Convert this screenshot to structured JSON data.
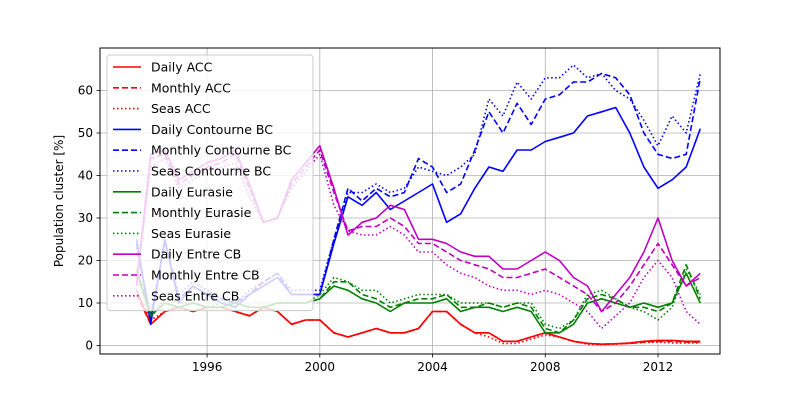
{
  "chart_data": {
    "type": "line",
    "title": "",
    "xlabel": "",
    "ylabel": "Population cluster [%]",
    "xlim": [
      1992.2,
      2014.2
    ],
    "ylim": [
      -2,
      70
    ],
    "x_ticks": [
      1996,
      2000,
      2004,
      2008,
      2012
    ],
    "x_tick_labels": [
      "1996",
      "2000",
      "2004",
      "2008",
      "2012"
    ],
    "y_ticks": [
      0,
      10,
      20,
      30,
      40,
      50,
      60
    ],
    "y_tick_labels": [
      "0",
      "10",
      "20",
      "30",
      "40",
      "50",
      "60"
    ],
    "grid": true,
    "legend_position": "upper-left",
    "colors": {
      "ACC": "#ff0000",
      "Contourne BC": "#0000ff",
      "Eurasie": "#008000",
      "Entre CB": "#bf00bf"
    },
    "x": [
      1993.5,
      1994.0,
      1994.5,
      1995.0,
      1995.5,
      1996.0,
      1996.5,
      1997.0,
      1997.5,
      1998.0,
      1998.5,
      1999.0,
      1999.5,
      2000.0,
      2000.5,
      2001.0,
      2001.5,
      2002.0,
      2002.5,
      2003.0,
      2003.5,
      2004.0,
      2004.5,
      2005.0,
      2005.5,
      2006.0,
      2006.5,
      2007.0,
      2007.5,
      2008.0,
      2008.5,
      2009.0,
      2009.5,
      2010.0,
      2010.5,
      2011.0,
      2011.5,
      2012.0,
      2012.5,
      2013.0,
      2013.5
    ],
    "series": [
      {
        "name": "Daily ACC",
        "group": "ACC",
        "style": "solid",
        "values": [
          13,
          5,
          8,
          9,
          8,
          9,
          9,
          8,
          7,
          9,
          8,
          5,
          6,
          6,
          3,
          2,
          3,
          4,
          3,
          3,
          4,
          8,
          8,
          5,
          3,
          3,
          1,
          1,
          2,
          3,
          2,
          1,
          0.5,
          0.3,
          0.4,
          0.6,
          1.0,
          1.2,
          1.2,
          1.0,
          1.0
        ]
      },
      {
        "name": "Monthly ACC",
        "group": "ACC",
        "style": "dashed",
        "values": [
          12,
          5,
          8,
          9,
          8,
          9,
          9,
          8,
          7,
          9,
          8,
          5,
          6,
          6,
          3,
          2,
          3,
          4,
          3,
          3,
          4,
          8,
          8,
          5,
          3,
          3,
          1,
          1,
          2,
          3,
          2,
          1,
          0.5,
          0.3,
          0.4,
          0.5,
          0.8,
          1.0,
          1.0,
          0.8,
          0.8
        ]
      },
      {
        "name": "Seas ACC",
        "group": "ACC",
        "style": "dotted",
        "values": [
          13,
          6,
          8,
          9,
          8,
          9,
          9,
          8,
          7,
          9,
          8,
          5,
          6,
          6,
          3,
          2,
          3,
          4,
          3,
          3,
          4,
          8,
          8,
          5,
          3,
          2,
          0.5,
          0.5,
          1.5,
          2.5,
          2,
          1,
          0.3,
          0.2,
          0.3,
          0.5,
          0.7,
          0.8,
          0.6,
          0.6,
          0.6
        ]
      },
      {
        "name": "Daily Contourne BC",
        "group": "Contourne BC",
        "style": "solid",
        "values": [
          25,
          5,
          25,
          10,
          14,
          12,
          10,
          9,
          12,
          14,
          16,
          12,
          12,
          12,
          24,
          35,
          33,
          36,
          32,
          34,
          36,
          38,
          29,
          31,
          37,
          42,
          41,
          46,
          46,
          48,
          49,
          50,
          54,
          55,
          56,
          50,
          42,
          37,
          39,
          42,
          51
        ]
      },
      {
        "name": "Monthly Contourne BC",
        "group": "Contourne BC",
        "style": "dashed",
        "values": [
          24,
          6,
          25,
          11,
          14,
          12,
          11,
          10,
          12,
          15,
          17,
          12,
          12,
          12,
          25,
          37,
          34,
          37,
          35,
          36,
          44,
          42,
          36,
          38,
          46,
          55,
          50,
          57,
          52,
          58,
          59,
          62,
          62,
          64,
          63,
          59,
          50,
          45,
          44,
          45,
          63
        ]
      },
      {
        "name": "Seas Contourne BC",
        "group": "Contourne BC",
        "style": "dotted",
        "values": [
          23,
          7,
          24,
          12,
          15,
          13,
          11,
          10,
          13,
          15,
          17,
          13,
          13,
          13,
          25,
          36,
          36,
          38,
          36,
          37,
          42,
          41,
          40,
          42,
          45,
          58,
          54,
          62,
          58,
          63,
          63,
          66,
          63,
          64,
          60,
          58,
          53,
          47,
          54,
          50,
          64
        ]
      },
      {
        "name": "Daily Eurasie",
        "group": "Eurasie",
        "style": "solid",
        "values": [
          18,
          7,
          10,
          9,
          10,
          9,
          9,
          10,
          9,
          9,
          10,
          10,
          10,
          11,
          14,
          13,
          11,
          10,
          8,
          10,
          10,
          10,
          11,
          8,
          9,
          9,
          8,
          9,
          8,
          3,
          3,
          5,
          10,
          11,
          10,
          9,
          10,
          9,
          10,
          17,
          10
        ]
      },
      {
        "name": "Monthly Eurasie",
        "group": "Eurasie",
        "style": "dashed",
        "values": [
          17,
          7,
          10,
          9,
          10,
          9,
          9,
          10,
          9,
          9,
          10,
          10,
          10,
          11,
          15,
          15,
          12,
          11,
          9,
          10,
          11,
          11,
          12,
          9,
          9,
          10,
          9,
          10,
          9,
          4,
          3,
          6,
          11,
          12,
          11,
          9,
          9,
          8,
          10,
          19,
          11
        ]
      },
      {
        "name": "Seas Eurasie",
        "group": "Eurasie",
        "style": "dotted",
        "values": [
          17,
          7,
          11,
          10,
          10,
          9,
          10,
          10,
          9,
          9,
          10,
          10,
          10,
          12,
          16,
          15,
          13,
          13,
          10,
          11,
          12,
          12,
          12,
          10,
          10,
          10,
          9,
          10,
          10,
          5,
          4,
          6,
          12,
          13,
          11,
          9,
          8,
          6,
          9,
          18,
          12
        ]
      },
      {
        "name": "Daily Entre CB",
        "group": "Entre CB",
        "style": "solid",
        "values": [
          15,
          45,
          46,
          39,
          41,
          43,
          44,
          46,
          38,
          29,
          30,
          39,
          43,
          47,
          37,
          26,
          29,
          30,
          33,
          32,
          25,
          25,
          24,
          22,
          21,
          21,
          18,
          18,
          20,
          22,
          20,
          16,
          14,
          8,
          12,
          16,
          22,
          30,
          20,
          14,
          17
        ]
      },
      {
        "name": "Monthly Entre CB",
        "group": "Entre CB",
        "style": "dashed",
        "values": [
          14,
          44,
          45,
          38,
          40,
          42,
          43,
          45,
          37,
          29,
          30,
          38,
          42,
          46,
          36,
          27,
          28,
          28,
          30,
          28,
          24,
          24,
          22,
          20,
          19,
          18,
          16,
          16,
          17,
          18,
          16,
          14,
          12,
          8,
          10,
          14,
          19,
          24,
          19,
          14,
          16
        ]
      },
      {
        "name": "Seas Entre CB",
        "group": "Entre CB",
        "style": "dotted",
        "values": [
          14,
          42,
          44,
          37,
          39,
          41,
          42,
          43,
          35,
          29,
          30,
          37,
          41,
          45,
          33,
          27,
          26,
          26,
          28,
          26,
          22,
          22,
          19,
          17,
          16,
          14,
          13,
          13,
          12,
          13,
          12,
          10,
          8,
          4,
          7,
          10,
          16,
          20,
          16,
          8,
          5
        ]
      }
    ]
  }
}
